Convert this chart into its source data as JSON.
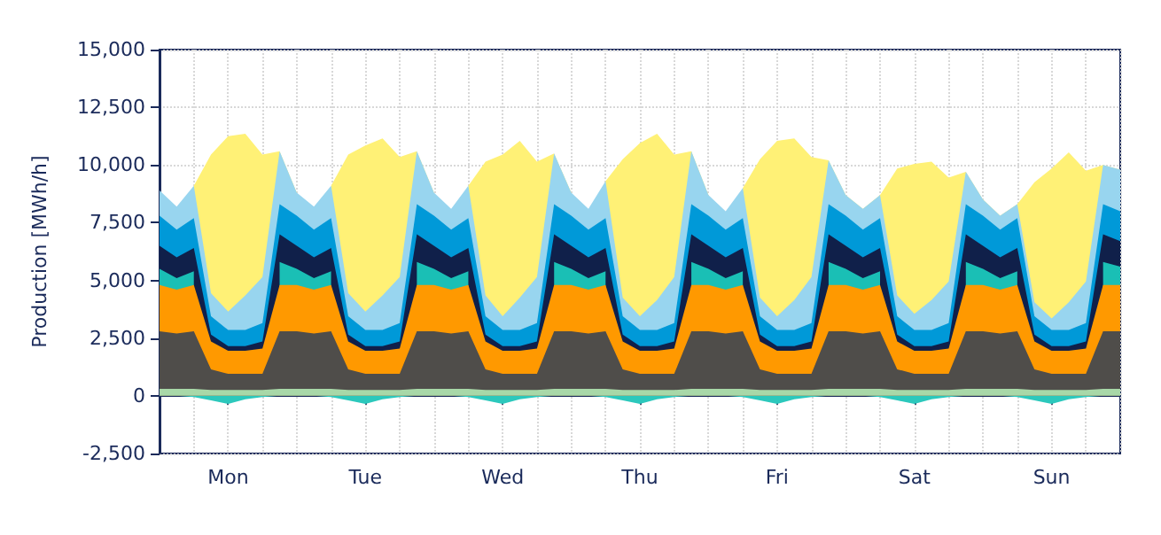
{
  "chart_data": {
    "type": "area",
    "ylabel": "Production [MWh/h]",
    "categories": [
      null,
      null,
      null,
      null,
      "Mon",
      null,
      null,
      null,
      null,
      null,
      null,
      null,
      "Tue",
      null,
      null,
      null,
      null,
      null,
      null,
      null,
      "Wed",
      null,
      null,
      null,
      null,
      null,
      null,
      null,
      "Thu",
      null,
      null,
      null,
      null,
      null,
      null,
      null,
      "Fri",
      null,
      null,
      null,
      null,
      null,
      null,
      null,
      "Sat",
      null,
      null,
      null,
      null,
      null,
      null,
      null,
      "Sun",
      null,
      null,
      null,
      null
    ],
    "ylim": [
      -2500,
      15000
    ],
    "yticks": [
      {
        "value": -2500,
        "label": "-2,500"
      },
      0,
      {
        "value": 2500,
        "label": "2,500"
      },
      {
        "value": 5000,
        "label": "5,000"
      },
      {
        "value": 7500,
        "label": "7,500"
      },
      {
        "value": 10000,
        "label": "10,000"
      },
      {
        "value": 12500,
        "label": "12,500"
      },
      {
        "value": 15000,
        "label": "15,000"
      }
    ],
    "grid": true,
    "series": [
      {
        "color": "#a8d8a8",
        "values": [
          300,
          300,
          300,
          250,
          250,
          250,
          250,
          300,
          300,
          300,
          300,
          250,
          250,
          250,
          250,
          300,
          300,
          300,
          300,
          250,
          250,
          250,
          250,
          300,
          300,
          300,
          300,
          250,
          250,
          250,
          250,
          300,
          300,
          300,
          300,
          250,
          250,
          250,
          250,
          300,
          300,
          300,
          300,
          250,
          250,
          250,
          250,
          300,
          300,
          300,
          300,
          250,
          250,
          250,
          250,
          300,
          300
        ]
      },
      {
        "color": "#4f4d4a",
        "values": [
          2800,
          2700,
          2800,
          1150,
          950,
          950,
          950,
          2800,
          2800,
          2700,
          2800,
          1150,
          950,
          950,
          950,
          2800,
          2800,
          2700,
          2800,
          1150,
          950,
          950,
          950,
          2800,
          2800,
          2700,
          2800,
          1150,
          950,
          950,
          950,
          2800,
          2800,
          2700,
          2800,
          1150,
          950,
          950,
          950,
          2800,
          2800,
          2700,
          2800,
          1150,
          950,
          950,
          950,
          2800,
          2800,
          2700,
          2800,
          1150,
          950,
          950,
          950,
          2800,
          2800
        ]
      },
      {
        "color": "#ff9900",
        "values": [
          4800,
          4600,
          4800,
          2350,
          1950,
          1950,
          2050,
          4800,
          4800,
          4600,
          4800,
          2350,
          1950,
          1950,
          2050,
          4800,
          4800,
          4600,
          4800,
          2350,
          1950,
          1950,
          2050,
          4800,
          4800,
          4600,
          4800,
          2350,
          1950,
          1950,
          2050,
          4800,
          4800,
          4600,
          4800,
          2350,
          1950,
          1950,
          2050,
          4800,
          4800,
          4600,
          4800,
          2350,
          1950,
          1950,
          2050,
          4800,
          4800,
          4600,
          4800,
          2350,
          1950,
          1950,
          2050,
          4800,
          4800
        ]
      },
      {
        "color": "#1abfb5",
        "values": [
          5500,
          5100,
          5400,
          null,
          null,
          null,
          null,
          5800,
          5500,
          5100,
          5400,
          null,
          null,
          null,
          null,
          5800,
          5500,
          5100,
          5400,
          null,
          null,
          null,
          null,
          5800,
          5500,
          5100,
          5400,
          null,
          null,
          null,
          null,
          5800,
          5500,
          5100,
          5400,
          null,
          null,
          null,
          null,
          5800,
          5500,
          5100,
          5400,
          null,
          null,
          null,
          null,
          5800,
          5500,
          5100,
          5400,
          null,
          null,
          null,
          null,
          5800,
          5600
        ]
      },
      {
        "color": "#10204a",
        "values": [
          6500,
          6000,
          6400,
          2650,
          2150,
          2150,
          2350,
          7000,
          6500,
          6000,
          6400,
          2650,
          2150,
          2150,
          2350,
          7000,
          6500,
          6000,
          6400,
          2650,
          2150,
          2150,
          2350,
          7000,
          6500,
          6000,
          6400,
          2650,
          2150,
          2150,
          2350,
          7000,
          6500,
          6000,
          6400,
          2650,
          2150,
          2150,
          2350,
          7000,
          6500,
          6000,
          6400,
          2650,
          2150,
          2150,
          2350,
          7000,
          6500,
          6000,
          6400,
          2650,
          2150,
          2150,
          2350,
          7000,
          6700
        ]
      },
      {
        "color": "#0099d8",
        "values": [
          7800,
          7200,
          7700,
          3450,
          2850,
          2850,
          3150,
          8300,
          7800,
          7200,
          7700,
          3450,
          2850,
          2850,
          3150,
          8300,
          7800,
          7200,
          7700,
          3450,
          2850,
          2850,
          3150,
          8300,
          7800,
          7200,
          7700,
          3450,
          2850,
          2850,
          3150,
          8300,
          7800,
          7200,
          7700,
          3450,
          2850,
          2850,
          3150,
          8300,
          7800,
          7200,
          7700,
          3450,
          2850,
          2850,
          3150,
          8300,
          7800,
          7200,
          7700,
          3450,
          2850,
          2850,
          3150,
          8300,
          8000
        ]
      },
      {
        "color": "#98d5ef",
        "values": [
          8900,
          8200,
          9100,
          4450,
          3650,
          4350,
          5150,
          10600,
          8800,
          8200,
          9100,
          4450,
          3650,
          4350,
          5150,
          10600,
          8800,
          8100,
          9100,
          4350,
          3450,
          4250,
          5150,
          10500,
          8800,
          8100,
          9300,
          4250,
          3450,
          4150,
          5150,
          10600,
          8700,
          8000,
          9000,
          4250,
          3450,
          4150,
          5150,
          10200,
          8700,
          8100,
          8700,
          4350,
          3550,
          4150,
          4950,
          9700,
          8500,
          7800,
          8300,
          4050,
          3350,
          4050,
          4950,
          10000,
          9800
        ]
      },
      {
        "color": "#fff176",
        "values": [
          null,
          null,
          9100,
          10450,
          11250,
          11350,
          10450,
          10600,
          8800,
          null,
          9100,
          10450,
          10850,
          11150,
          10350,
          10600,
          8800,
          null,
          9100,
          10150,
          10450,
          11050,
          10150,
          10500,
          8800,
          null,
          9300,
          10250,
          10950,
          11350,
          10450,
          10600,
          8700,
          null,
          9000,
          10250,
          11050,
          11150,
          10350,
          10200,
          8700,
          8100,
          8700,
          9850,
          10050,
          10150,
          9450,
          9700,
          8500,
          7800,
          8300,
          9250,
          9850,
          10550,
          9750,
          10000,
          9800
        ]
      },
      {
        "color": "#2cc8bc",
        "values": [
          0,
          0,
          -50,
          -200,
          -350,
          -150,
          -50,
          0,
          0,
          0,
          -50,
          -200,
          -350,
          -150,
          -50,
          0,
          0,
          0,
          -50,
          -200,
          -350,
          -150,
          -50,
          0,
          0,
          0,
          -50,
          -200,
          -350,
          -150,
          -50,
          0,
          0,
          0,
          -50,
          -200,
          -350,
          -150,
          -50,
          0,
          0,
          0,
          -50,
          -200,
          -350,
          -150,
          -50,
          0,
          0,
          0,
          -50,
          -200,
          -350,
          -150,
          -50,
          0,
          0
        ]
      }
    ]
  }
}
